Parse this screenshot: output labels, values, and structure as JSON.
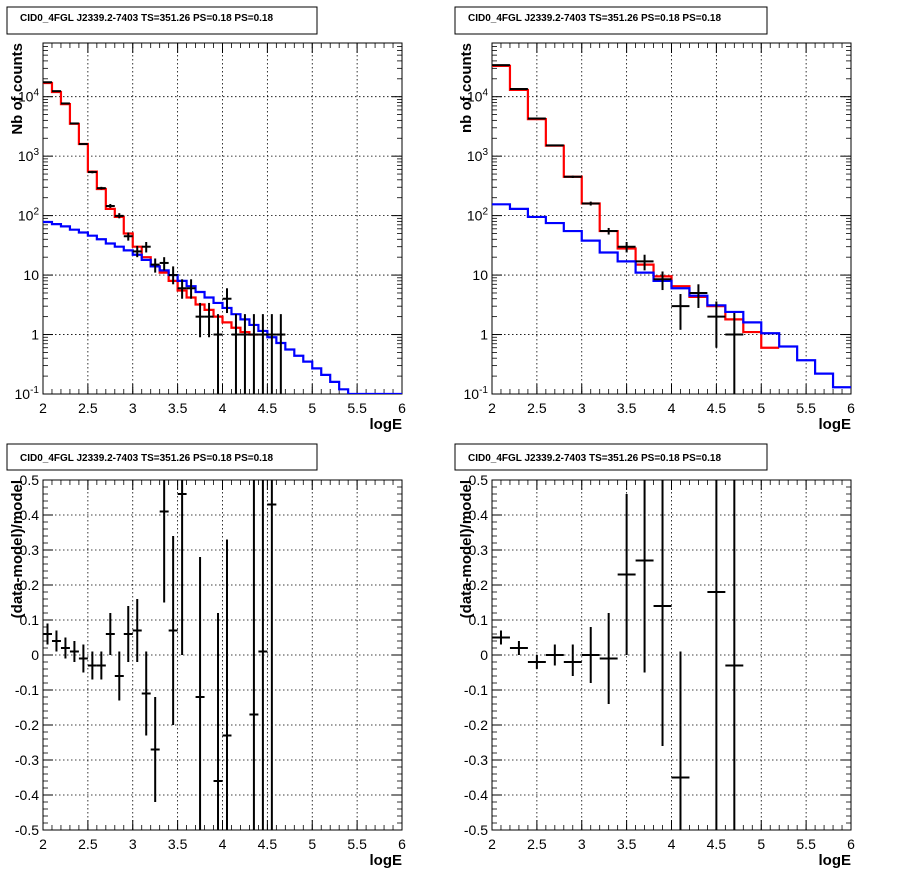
{
  "chart_data": [
    {
      "id": "p1",
      "type": "step-histogram",
      "title": "CID0_4FGL J2339.2-7403 TS=351.26 PS=0.18 PS=0.18",
      "xlabel": "logE",
      "ylabel": "Nb of counts",
      "xlim": [
        2,
        6
      ],
      "ylim": [
        0.1,
        80000
      ],
      "yscale": "log",
      "grid": true,
      "xticks": [
        "2",
        "2.5",
        "3",
        "3.5",
        "4",
        "4.5",
        "5",
        "5.5",
        "6"
      ],
      "yticks": [
        {
          "v": 0.1,
          "base": "10",
          "exp": "-1"
        },
        {
          "v": 1,
          "label": "1"
        },
        {
          "v": 10,
          "label": "10"
        },
        {
          "v": 100,
          "base": "10",
          "exp": "2"
        },
        {
          "v": 1000,
          "base": "10",
          "exp": "3"
        },
        {
          "v": 10000,
          "base": "10",
          "exp": "4"
        }
      ],
      "series": [
        {
          "color": "#ff0000",
          "style": "step",
          "x0": 2,
          "dx": 0.1,
          "values": [
            17000,
            12000,
            7500,
            3500,
            1600,
            550,
            280,
            130,
            95,
            50,
            30,
            20,
            14,
            11,
            8,
            5.5,
            4.2,
            3.2,
            2.6,
            2.0,
            1.6,
            1.3,
            1.1,
            1.0
          ]
        },
        {
          "color": "#0000ff",
          "style": "step",
          "x0": 2,
          "dx": 0.1,
          "values": [
            78,
            72,
            66,
            58,
            52,
            46,
            40,
            34,
            30,
            26,
            22,
            18,
            14,
            12,
            10,
            8,
            6.5,
            5.2,
            4.2,
            3.4,
            2.8,
            2.2,
            1.8,
            1.45,
            1.15,
            0.9,
            0.72,
            0.56,
            0.44,
            0.35,
            0.27,
            0.21,
            0.16,
            0.12,
            0.1,
            0.1,
            0.1,
            0.1,
            0.1,
            0.1
          ]
        }
      ],
      "points": {
        "color": "#000000",
        "halfwidth": 0.05,
        "x": [
          2.05,
          2.15,
          2.25,
          2.35,
          2.45,
          2.55,
          2.65,
          2.75,
          2.85,
          2.95,
          3.05,
          3.15,
          3.25,
          3.35,
          3.45,
          3.55,
          3.65,
          3.75,
          3.85,
          3.95,
          4.05,
          4.15,
          4.25,
          4.35,
          4.45,
          4.55,
          4.65
        ],
        "y": [
          17500,
          12400,
          7700,
          3550,
          1600,
          540,
          290,
          145,
          99,
          45,
          25,
          30,
          15,
          16,
          10,
          6,
          6,
          2,
          2,
          1,
          4,
          1,
          1,
          1,
          1,
          1,
          1
        ],
        "lo": [
          17400,
          12300,
          7600,
          3450,
          1550,
          515,
          275,
          135,
          90,
          38,
          20,
          24,
          11,
          12,
          7,
          4,
          4,
          0.9,
          0.9,
          0.1,
          2.3,
          0.1,
          0.1,
          0.1,
          0.1,
          0.1,
          0.1
        ],
        "hi": [
          17600,
          12500,
          7800,
          3650,
          1650,
          565,
          305,
          157,
          110,
          52,
          31,
          36,
          19,
          20,
          14,
          8.5,
          8.5,
          3.4,
          3.4,
          2.2,
          6,
          2.2,
          2.2,
          2.2,
          2.2,
          2.2,
          2.2
        ]
      }
    },
    {
      "id": "p2",
      "type": "step-histogram",
      "title": "CID0_4FGL J2339.2-7403 TS=351.26 PS=0.18 PS=0.18",
      "xlabel": "logE",
      "ylabel": "nb of counts",
      "xlim": [
        2,
        6
      ],
      "ylim": [
        0.1,
        80000
      ],
      "yscale": "log",
      "grid": true,
      "xticks": [
        "2",
        "2.5",
        "3",
        "3.5",
        "4",
        "4.5",
        "5",
        "5.5",
        "6"
      ],
      "yticks": [
        {
          "v": 0.1,
          "base": "10",
          "exp": "-1"
        },
        {
          "v": 1,
          "label": "1"
        },
        {
          "v": 10,
          "label": "10"
        },
        {
          "v": 100,
          "base": "10",
          "exp": "2"
        },
        {
          "v": 1000,
          "base": "10",
          "exp": "3"
        },
        {
          "v": 10000,
          "base": "10",
          "exp": "4"
        }
      ],
      "series": [
        {
          "color": "#ff0000",
          "style": "step",
          "x0": 2,
          "dx": 0.2,
          "values": [
            33000,
            13000,
            4200,
            1500,
            450,
            160,
            55,
            28,
            15,
            9.5,
            6.5,
            4.3,
            3.0,
            1.8,
            1.1,
            0.6
          ]
        },
        {
          "color": "#0000ff",
          "style": "step",
          "x0": 2,
          "dx": 0.2,
          "values": [
            155,
            130,
            95,
            75,
            55,
            38,
            24,
            17,
            11,
            8,
            6,
            4.5,
            3.1,
            2.4,
            1.6,
            1.05,
            0.63,
            0.37,
            0.22,
            0.13
          ]
        }
      ],
      "points": {
        "color": "#000000",
        "halfwidth": 0.1,
        "x": [
          2.1,
          2.3,
          2.5,
          2.7,
          2.9,
          3.1,
          3.3,
          3.5,
          3.7,
          3.9,
          4.1,
          4.3,
          4.5,
          4.7
        ],
        "y": [
          34000,
          13500,
          4300,
          1520,
          450,
          160,
          55,
          30,
          17,
          8.5,
          3,
          5,
          2,
          1
        ],
        "lo": [
          33800,
          13400,
          4230,
          1480,
          430,
          148,
          48,
          24,
          12,
          5.6,
          1.2,
          2.8,
          0.6,
          0.1
        ],
        "hi": [
          34200,
          13600,
          4370,
          1560,
          470,
          172,
          62,
          36,
          22,
          11.5,
          4.8,
          7,
          3.6,
          2.3
        ]
      }
    },
    {
      "id": "p3",
      "type": "scatter-errorbars",
      "title": "CID0_4FGL J2339.2-7403 TS=351.26 PS=0.18 PS=0.18",
      "xlabel": "logE",
      "ylabel": "(data-model)/model",
      "xlim": [
        2,
        6
      ],
      "ylim": [
        -0.5,
        0.5
      ],
      "yscale": "linear",
      "grid": true,
      "xticks": [
        "2",
        "2.5",
        "3",
        "3.5",
        "4",
        "4.5",
        "5",
        "5.5",
        "6"
      ],
      "yticks": [
        {
          "v": -0.5,
          "label": "-0.5"
        },
        {
          "v": -0.4,
          "label": "-0.4"
        },
        {
          "v": -0.3,
          "label": "-0.3"
        },
        {
          "v": -0.2,
          "label": "-0.2"
        },
        {
          "v": -0.1,
          "label": "-0.1"
        },
        {
          "v": 0,
          "label": "0"
        },
        {
          "v": 0.1,
          "label": "0.1"
        },
        {
          "v": 0.2,
          "label": "0.2"
        },
        {
          "v": 0.3,
          "label": "0.3"
        },
        {
          "v": 0.4,
          "label": "0.4"
        },
        {
          "v": 0.5,
          "label": "0.5"
        }
      ],
      "points": {
        "color": "#000000",
        "halfwidth": 0.05,
        "x": [
          2.05,
          2.15,
          2.25,
          2.35,
          2.45,
          2.55,
          2.65,
          2.75,
          2.85,
          2.95,
          3.05,
          3.15,
          3.25,
          3.35,
          3.45,
          3.55,
          3.75,
          3.95,
          4.05,
          4.35,
          4.45,
          4.55
        ],
        "y": [
          0.06,
          0.04,
          0.02,
          0.01,
          -0.01,
          -0.03,
          -0.03,
          0.06,
          -0.06,
          0.06,
          0.07,
          -0.11,
          -0.27,
          0.41,
          0.07,
          0.46,
          -0.12,
          -0.36,
          -0.23,
          -0.17,
          0.01,
          0.43
        ],
        "lo": [
          0.03,
          0.01,
          -0.01,
          -0.02,
          -0.05,
          -0.07,
          -0.07,
          0.0,
          -0.13,
          -0.02,
          -0.02,
          -0.23,
          -0.42,
          0.15,
          -0.2,
          0.0,
          -0.5,
          -0.5,
          -0.5,
          -0.5,
          -0.5,
          -0.5
        ],
        "hi": [
          0.09,
          0.07,
          0.05,
          0.04,
          0.03,
          0.01,
          0.01,
          0.12,
          0.01,
          0.14,
          0.16,
          0.01,
          -0.12,
          0.5,
          0.34,
          0.5,
          0.28,
          0.12,
          0.33,
          0.5,
          0.5,
          0.5
        ]
      }
    },
    {
      "id": "p4",
      "type": "scatter-errorbars",
      "title": "CID0_4FGL J2339.2-7403 TS=351.26 PS=0.18 PS=0.18",
      "xlabel": "logE",
      "ylabel": "(data-model)/model",
      "xlim": [
        2,
        6
      ],
      "ylim": [
        -0.5,
        0.5
      ],
      "yscale": "linear",
      "grid": true,
      "xticks": [
        "2",
        "2.5",
        "3",
        "3.5",
        "4",
        "4.5",
        "5",
        "5.5",
        "6"
      ],
      "yticks": [
        {
          "v": -0.5,
          "label": "-0.5"
        },
        {
          "v": -0.4,
          "label": "-0.4"
        },
        {
          "v": -0.3,
          "label": "-0.3"
        },
        {
          "v": -0.2,
          "label": "-0.2"
        },
        {
          "v": -0.1,
          "label": "-0.1"
        },
        {
          "v": 0,
          "label": "0"
        },
        {
          "v": 0.1,
          "label": "0.1"
        },
        {
          "v": 0.2,
          "label": "0.2"
        },
        {
          "v": 0.3,
          "label": "0.3"
        },
        {
          "v": 0.4,
          "label": "0.4"
        },
        {
          "v": 0.5,
          "label": "0.5"
        }
      ],
      "points": {
        "color": "#000000",
        "halfwidth": 0.1,
        "x": [
          2.1,
          2.3,
          2.5,
          2.7,
          2.9,
          3.1,
          3.3,
          3.5,
          3.7,
          3.9,
          4.1,
          4.5,
          4.7
        ],
        "y": [
          0.05,
          0.02,
          -0.02,
          0.0,
          -0.02,
          0.0,
          -0.01,
          0.23,
          0.27,
          0.14,
          -0.35,
          0.18,
          -0.03
        ],
        "lo": [
          0.03,
          0.0,
          -0.04,
          -0.03,
          -0.06,
          -0.08,
          -0.14,
          0.0,
          -0.05,
          -0.26,
          -0.5,
          -0.5,
          -0.5
        ],
        "hi": [
          0.07,
          0.04,
          0.0,
          0.03,
          0.03,
          0.08,
          0.12,
          0.46,
          0.5,
          0.5,
          0.01,
          0.5,
          0.5
        ]
      }
    }
  ]
}
